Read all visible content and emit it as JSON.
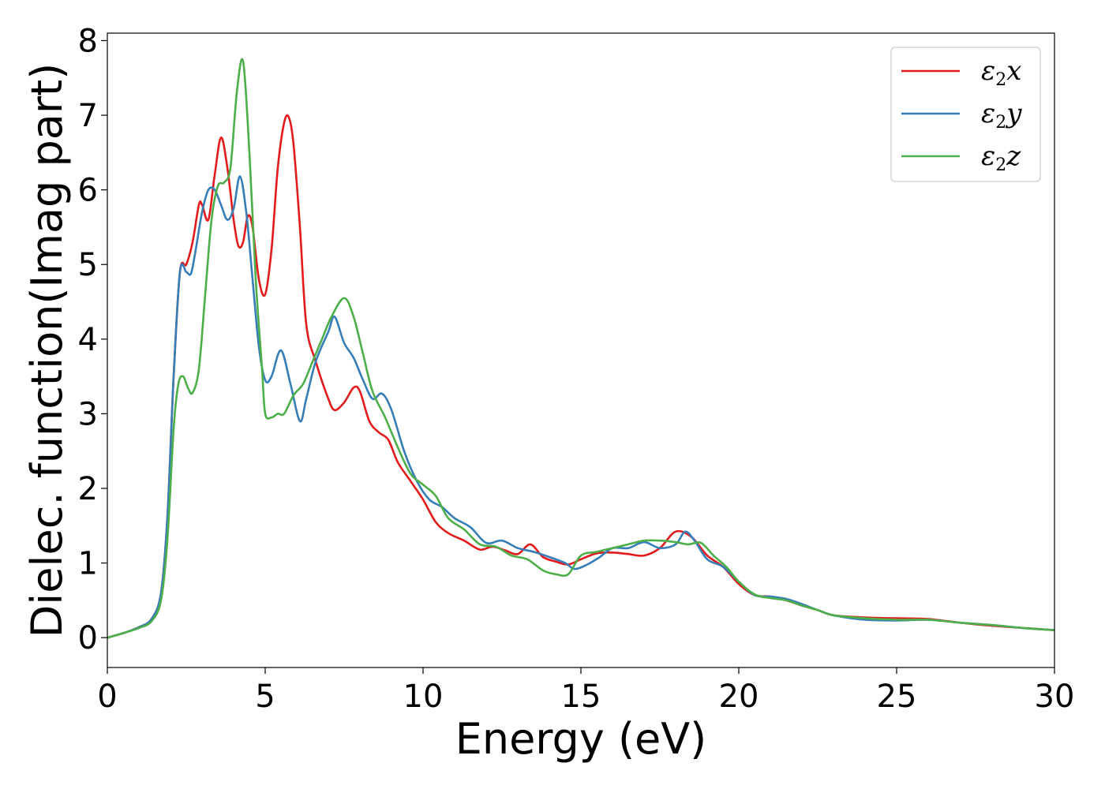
{
  "chart_data": {
    "type": "line",
    "title": "",
    "xlabel": "Energy (eV)",
    "ylabel": "Dielec. function(Imag part)",
    "xlim": [
      0,
      30
    ],
    "ylim": [
      -0.4,
      8.1
    ],
    "xticks": [
      0,
      5,
      10,
      15,
      20,
      25,
      30
    ],
    "yticks": [
      0,
      1,
      2,
      3,
      4,
      5,
      6,
      7,
      8
    ],
    "grid": false,
    "legend_position": "top-right",
    "series": [
      {
        "name": "ε₂x",
        "legend": {
          "base": "ε",
          "sub": "2",
          "var": "x"
        },
        "color": "#e41a1c",
        "x": [
          0,
          0.5,
          1.0,
          1.4,
          1.7,
          1.9,
          2.1,
          2.3,
          2.5,
          2.7,
          2.9,
          3.0,
          3.2,
          3.4,
          3.6,
          3.8,
          4.0,
          4.15,
          4.3,
          4.45,
          4.6,
          4.8,
          5.0,
          5.2,
          5.4,
          5.6,
          5.75,
          5.9,
          6.1,
          6.3,
          6.6,
          7.0,
          7.2,
          7.5,
          7.8,
          8.0,
          8.3,
          8.6,
          8.9,
          9.2,
          9.6,
          10.0,
          10.4,
          10.8,
          11.3,
          11.8,
          12.2,
          12.6,
          13.0,
          13.4,
          13.8,
          14.2,
          14.6,
          15.0,
          15.5,
          16.0,
          16.5,
          17.0,
          17.5,
          18.0,
          18.5,
          19.0,
          19.5,
          20.0,
          20.5,
          21.0,
          21.5,
          22.0,
          22.5,
          23.0,
          24.0,
          25.0,
          26.0,
          27.0,
          28.0,
          29.0,
          30.0
        ],
        "values": [
          0.0,
          0.06,
          0.14,
          0.25,
          0.6,
          1.6,
          3.5,
          4.9,
          5.0,
          5.3,
          5.8,
          5.8,
          5.6,
          6.2,
          6.7,
          6.3,
          5.6,
          5.25,
          5.3,
          5.65,
          5.5,
          4.8,
          4.6,
          5.2,
          6.3,
          6.9,
          6.97,
          6.6,
          5.5,
          4.2,
          3.7,
          3.2,
          3.05,
          3.15,
          3.35,
          3.3,
          2.9,
          2.75,
          2.65,
          2.35,
          2.1,
          1.85,
          1.55,
          1.4,
          1.3,
          1.18,
          1.22,
          1.17,
          1.12,
          1.25,
          1.08,
          1.02,
          0.98,
          1.05,
          1.13,
          1.14,
          1.12,
          1.1,
          1.2,
          1.42,
          1.35,
          1.1,
          0.95,
          0.72,
          0.57,
          0.55,
          0.5,
          0.43,
          0.37,
          0.3,
          0.27,
          0.26,
          0.25,
          0.2,
          0.16,
          0.13,
          0.1
        ]
      },
      {
        "name": "ε₂y",
        "legend": {
          "base": "ε",
          "sub": "2",
          "var": "y"
        },
        "color": "#377eb8",
        "x": [
          0,
          0.5,
          1.0,
          1.4,
          1.7,
          1.9,
          2.1,
          2.3,
          2.5,
          2.65,
          2.8,
          3.0,
          3.2,
          3.4,
          3.6,
          3.8,
          4.0,
          4.2,
          4.4,
          4.6,
          4.8,
          5.0,
          5.2,
          5.5,
          5.8,
          6.1,
          6.3,
          6.6,
          7.0,
          7.2,
          7.5,
          7.8,
          8.1,
          8.4,
          8.7,
          9.0,
          9.4,
          9.8,
          10.2,
          10.6,
          11.0,
          11.5,
          12.0,
          12.5,
          13.0,
          13.5,
          14.0,
          14.5,
          14.8,
          15.2,
          15.6,
          16.0,
          16.5,
          17.0,
          17.5,
          18.0,
          18.3,
          18.6,
          19.0,
          19.5,
          20.0,
          20.5,
          21.0,
          21.5,
          22.0,
          22.5,
          23.0,
          24.0,
          25.0,
          26.0,
          27.0,
          28.0,
          29.0,
          30.0
        ],
        "values": [
          0.0,
          0.06,
          0.14,
          0.25,
          0.6,
          1.6,
          3.5,
          4.9,
          4.9,
          4.88,
          5.2,
          5.7,
          6.0,
          6.0,
          5.8,
          5.6,
          5.75,
          6.18,
          5.7,
          4.8,
          3.9,
          3.45,
          3.5,
          3.85,
          3.4,
          2.9,
          3.2,
          3.7,
          4.1,
          4.3,
          3.95,
          3.75,
          3.45,
          3.2,
          3.27,
          3.05,
          2.5,
          2.1,
          1.85,
          1.75,
          1.6,
          1.48,
          1.27,
          1.3,
          1.2,
          1.15,
          1.08,
          1.0,
          0.92,
          0.98,
          1.08,
          1.2,
          1.2,
          1.28,
          1.2,
          1.25,
          1.42,
          1.3,
          1.05,
          0.95,
          0.75,
          0.57,
          0.55,
          0.52,
          0.45,
          0.37,
          0.3,
          0.24,
          0.23,
          0.24,
          0.2,
          0.17,
          0.13,
          0.1
        ]
      },
      {
        "name": "ε₂z",
        "legend": {
          "base": "ε",
          "sub": "2",
          "var": "z"
        },
        "color": "#4daf4a",
        "x": [
          0,
          0.5,
          1.0,
          1.4,
          1.7,
          1.9,
          2.1,
          2.25,
          2.4,
          2.55,
          2.7,
          2.9,
          3.1,
          3.3,
          3.5,
          3.7,
          3.9,
          4.1,
          4.3,
          4.5,
          4.7,
          4.9,
          5.0,
          5.2,
          5.4,
          5.6,
          5.9,
          6.2,
          6.5,
          6.8,
          7.1,
          7.5,
          7.8,
          8.1,
          8.4,
          8.8,
          9.2,
          9.6,
          10.0,
          10.4,
          10.8,
          11.3,
          11.8,
          12.3,
          12.8,
          13.3,
          13.8,
          14.2,
          14.6,
          15.0,
          15.5,
          16.0,
          16.5,
          17.0,
          17.5,
          18.0,
          18.4,
          18.8,
          19.2,
          19.6,
          20.0,
          20.5,
          21.0,
          21.5,
          22.0,
          22.5,
          23.0,
          24.0,
          25.0,
          26.0,
          27.0,
          28.0,
          29.0,
          30.0
        ],
        "values": [
          0.0,
          0.06,
          0.13,
          0.22,
          0.5,
          1.3,
          2.8,
          3.4,
          3.5,
          3.35,
          3.28,
          3.6,
          4.6,
          5.6,
          6.05,
          6.1,
          6.3,
          7.3,
          7.72,
          6.5,
          4.8,
          3.6,
          3.0,
          2.95,
          3.0,
          3.0,
          3.25,
          3.4,
          3.7,
          4.0,
          4.3,
          4.55,
          4.3,
          3.8,
          3.3,
          2.95,
          2.55,
          2.2,
          2.05,
          1.9,
          1.6,
          1.45,
          1.25,
          1.22,
          1.1,
          1.05,
          0.9,
          0.85,
          0.85,
          1.1,
          1.15,
          1.2,
          1.25,
          1.3,
          1.3,
          1.28,
          1.25,
          1.27,
          1.1,
          0.95,
          0.75,
          0.58,
          0.53,
          0.5,
          0.43,
          0.37,
          0.3,
          0.26,
          0.24,
          0.24,
          0.2,
          0.17,
          0.13,
          0.1
        ]
      }
    ]
  }
}
